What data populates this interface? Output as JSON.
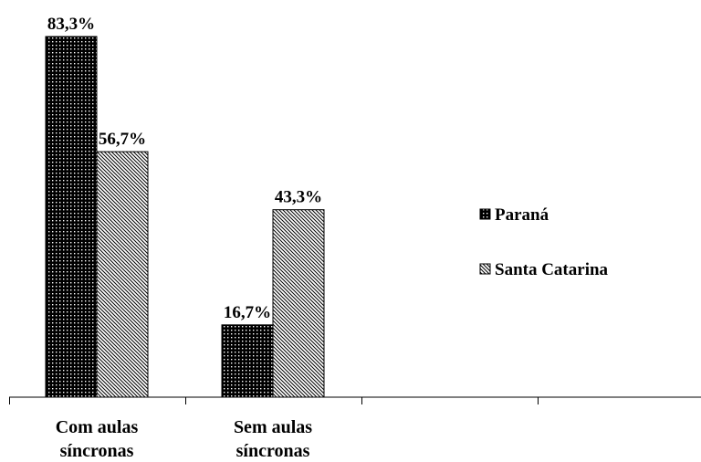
{
  "chart_data": {
    "type": "bar",
    "categories": [
      "Com aulas síncronas",
      "Sem aulas síncronas"
    ],
    "series": [
      {
        "name": "Paraná",
        "color": "#000000",
        "values": [
          83.3,
          16.7
        ],
        "value_labels": [
          "83,3%",
          "16,7%"
        ]
      },
      {
        "name": "Santa Catarina",
        "color": "#ffffff",
        "values": [
          56.7,
          43.3
        ],
        "value_labels": [
          "56,7%",
          "43,3%"
        ]
      }
    ],
    "legend": "right"
  }
}
